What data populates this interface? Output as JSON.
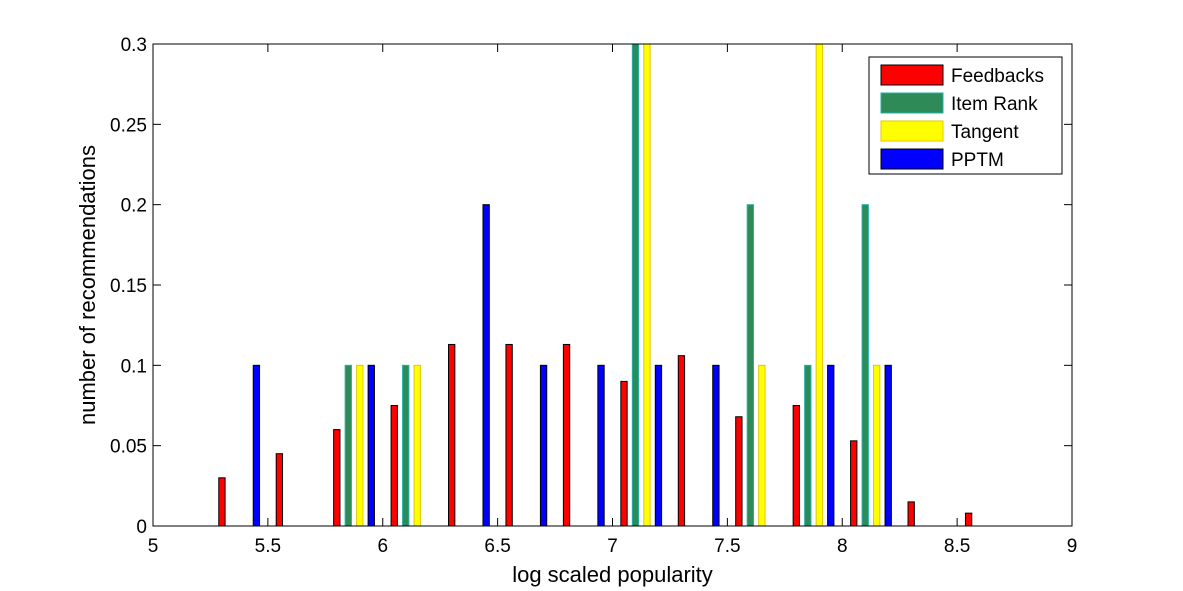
{
  "chart_data": {
    "type": "bar",
    "title": "",
    "xlabel": "log scaled popularity",
    "ylabel": "number of recommendations",
    "xlim": [
      5,
      9
    ],
    "ylim": [
      0,
      0.3
    ],
    "xticks": [
      "5",
      "5.5",
      "6",
      "6.5",
      "7",
      "7.5",
      "8",
      "8.5",
      "9"
    ],
    "yticks": [
      "0",
      "0.05",
      "0.1",
      "0.15",
      "0.2",
      "0.25",
      "0.3"
    ],
    "grid": false,
    "legend_position": "top-right",
    "bin_centers": [
      5.125,
      5.375,
      5.625,
      5.875,
      6.125,
      6.375,
      6.625,
      6.875,
      7.125,
      7.375,
      7.625,
      7.875,
      8.125,
      8.375,
      8.625,
      8.875
    ],
    "series": [
      {
        "name": "Feedbacks",
        "color": "#ff0000",
        "values": [
          0,
          0.03,
          0.045,
          0.06,
          0.075,
          0.113,
          0.113,
          0.113,
          0.09,
          0.106,
          0.068,
          0.075,
          0.053,
          0.015,
          0.008,
          0
        ]
      },
      {
        "name": "Item Rank",
        "color": "#2e8b57",
        "values": [
          0,
          0,
          0,
          0.1,
          0.1,
          0,
          0,
          0,
          0.3,
          0,
          0.2,
          0.1,
          0.2,
          0,
          0,
          0
        ]
      },
      {
        "name": "Tangent",
        "color": "#ffff00",
        "values": [
          0,
          0,
          0,
          0.1,
          0.1,
          0,
          0,
          0,
          0.3,
          0,
          0.1,
          0.3,
          0.1,
          0,
          0,
          0
        ]
      },
      {
        "name": "PPTM",
        "color": "#0000ff",
        "values": [
          0,
          0.1,
          0,
          0.1,
          0,
          0.2,
          0.1,
          0.1,
          0.1,
          0.1,
          0,
          0.1,
          0.1,
          0,
          0,
          0
        ]
      }
    ]
  }
}
